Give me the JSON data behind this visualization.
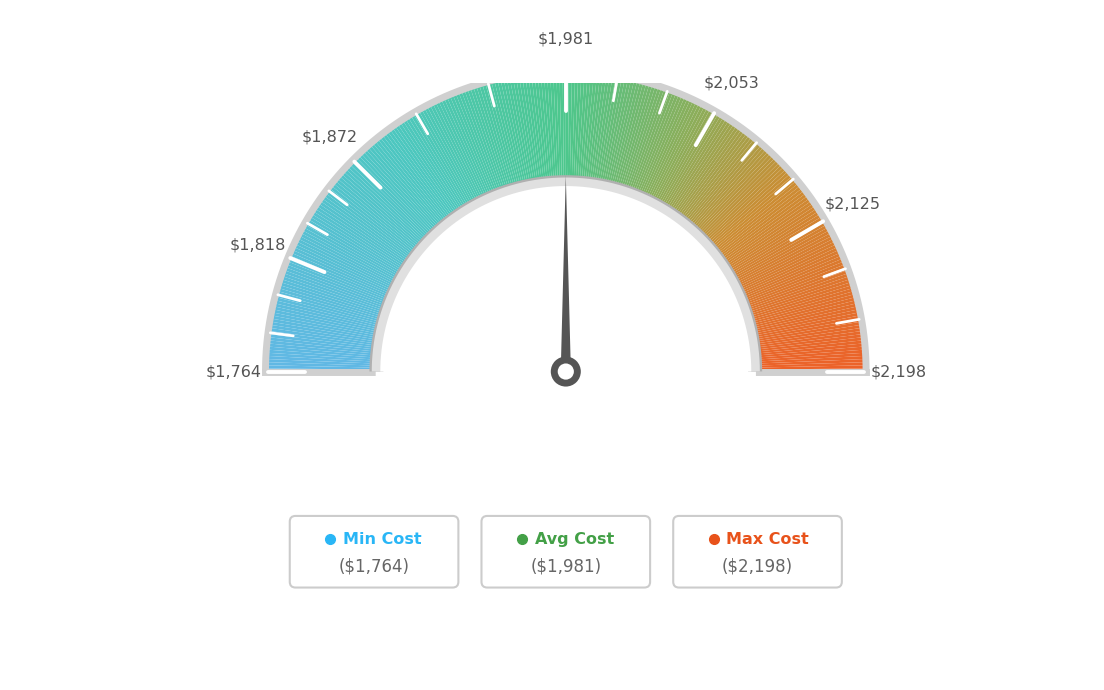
{
  "min_val": 1764,
  "max_val": 2198,
  "avg_val": 1981,
  "tick_labels": [
    "$1,764",
    "$1,818",
    "$1,872",
    "$1,981",
    "$2,053",
    "$2,125",
    "$2,198"
  ],
  "tick_values": [
    1764,
    1818,
    1872,
    1981,
    2053,
    2125,
    2198
  ],
  "legend_min_label": "Min Cost",
  "legend_avg_label": "Avg Cost",
  "legend_max_label": "Max Cost",
  "legend_min_value": "($1,764)",
  "legend_avg_value": "($1,981)",
  "legend_max_value": "($2,198)",
  "color_min_dot": "#29b6f6",
  "color_avg_dot": "#43a047",
  "color_max_dot": "#e8521a",
  "background_color": "#ffffff",
  "color_stops": [
    [
      0.0,
      [
        0.38,
        0.72,
        0.9
      ]
    ],
    [
      0.3,
      [
        0.3,
        0.78,
        0.75
      ]
    ],
    [
      0.5,
      [
        0.3,
        0.78,
        0.55
      ]
    ],
    [
      0.65,
      [
        0.55,
        0.68,
        0.35
      ]
    ],
    [
      0.78,
      [
        0.8,
        0.55,
        0.2
      ]
    ],
    [
      1.0,
      [
        0.93,
        0.38,
        0.16
      ]
    ]
  ]
}
